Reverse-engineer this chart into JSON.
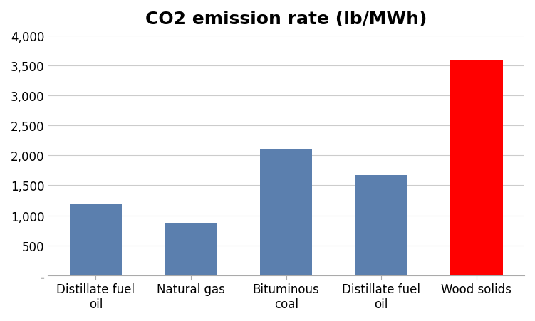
{
  "title": "CO2 emission rate (lb/MWh)",
  "categories": [
    "Distillate fuel\noil",
    "Natural gas",
    "Bituminous\ncoal",
    "Distillate fuel\noil",
    "Wood solids"
  ],
  "values": [
    1200,
    860,
    2100,
    1670,
    3580
  ],
  "bar_colors": [
    "#5b7fae",
    "#5b7fae",
    "#5b7fae",
    "#5b7fae",
    "#ff0000"
  ],
  "ylim": [
    0,
    4000
  ],
  "yticks": [
    0,
    500,
    1000,
    1500,
    2000,
    2500,
    3000,
    3500,
    4000
  ],
  "ytick_labels": [
    "-",
    "500",
    "1,000",
    "1,500",
    "2,000",
    "2,500",
    "3,000",
    "3,500",
    "4,000"
  ],
  "background_color": "#ffffff",
  "title_fontsize": 18,
  "tick_fontsize": 12,
  "bar_width": 0.55
}
